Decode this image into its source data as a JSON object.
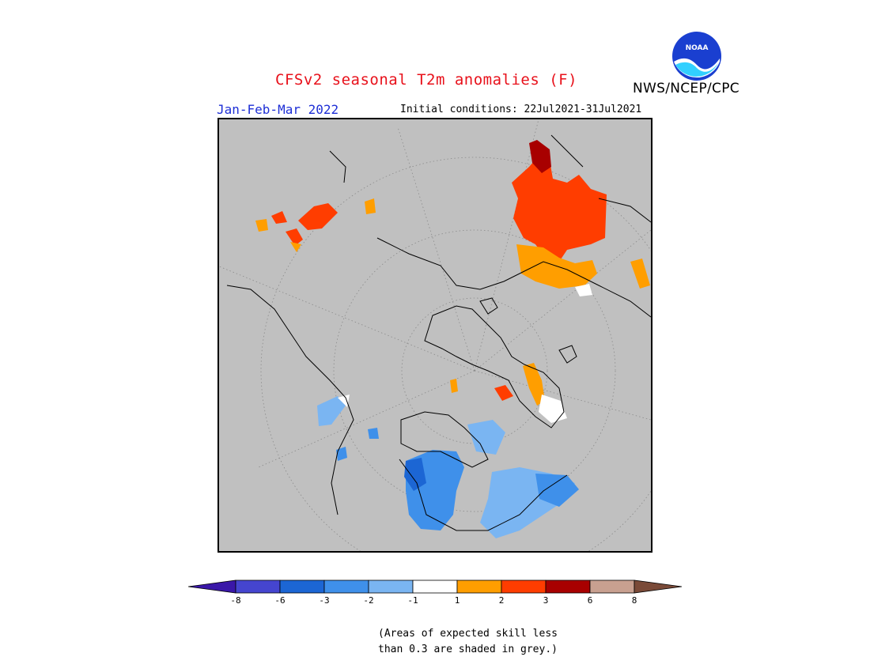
{
  "header": {
    "title": "CFSv2 seasonal T2m anomalies (F)",
    "agency": "NWS/NCEP/CPC",
    "logo_text": "NOAA",
    "season": "Jan-Feb-Mar 2022",
    "initial_conditions": "Initial conditions: 22Jul2021-31Jul2021"
  },
  "map": {
    "projection": "north polar stereographic",
    "background_color": "#c0c0c0",
    "coastline_color": "#000000"
  },
  "legend": {
    "bins": [
      {
        "color": "#3a17a8"
      },
      {
        "color": "#4545cf"
      },
      {
        "color": "#1c66d4"
      },
      {
        "color": "#3f90ea"
      },
      {
        "color": "#7ab5f2"
      },
      {
        "color": "#ffffff"
      },
      {
        "color": "#ff9e00"
      },
      {
        "color": "#ff3d00"
      },
      {
        "color": "#a80000"
      },
      {
        "color": "#c8a090"
      },
      {
        "color": "#7a4a38"
      }
    ],
    "ticks": [
      "-8",
      "-6",
      "-3",
      "-2",
      "-1",
      "1",
      "2",
      "3",
      "6",
      "8"
    ]
  },
  "footnote": {
    "line1": "(Areas of expected skill less",
    "line2": "than 0.3 are shaded in grey.)"
  }
}
